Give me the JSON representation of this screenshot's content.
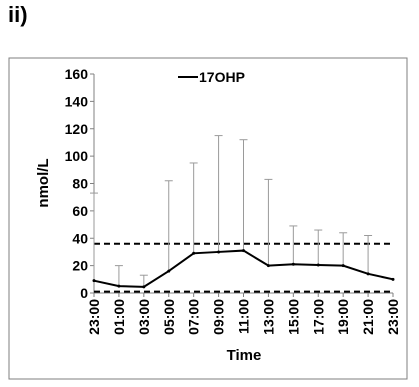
{
  "panel_label": "ii)",
  "chart_data": {
    "type": "line",
    "title": "",
    "xlabel": "Time",
    "ylabel": "nmol/L",
    "categories": [
      "23:00",
      "01:00",
      "03:00",
      "05:00",
      "07:00",
      "09:00",
      "11:00",
      "13:00",
      "15:00",
      "17:00",
      "19:00",
      "21:00",
      "23:00"
    ],
    "series": [
      {
        "name": "17OHP",
        "values": [
          9,
          5,
          4.5,
          16,
          29,
          30,
          31,
          20,
          21,
          20.5,
          20,
          14,
          10
        ],
        "error_upper": [
          73,
          20,
          13,
          82,
          95,
          115,
          112,
          83,
          49,
          46,
          44,
          42,
          0
        ]
      }
    ],
    "reference_lines": [
      36,
      1
    ],
    "ylim": [
      0,
      160
    ],
    "y_ticks": [
      0,
      20,
      40,
      60,
      80,
      100,
      120,
      140,
      160
    ],
    "grid": false,
    "legend_position": "top-center",
    "colors": {
      "series": "#000000",
      "error_bars": "#9a9a9a",
      "frame": "#7f7f7f"
    }
  }
}
